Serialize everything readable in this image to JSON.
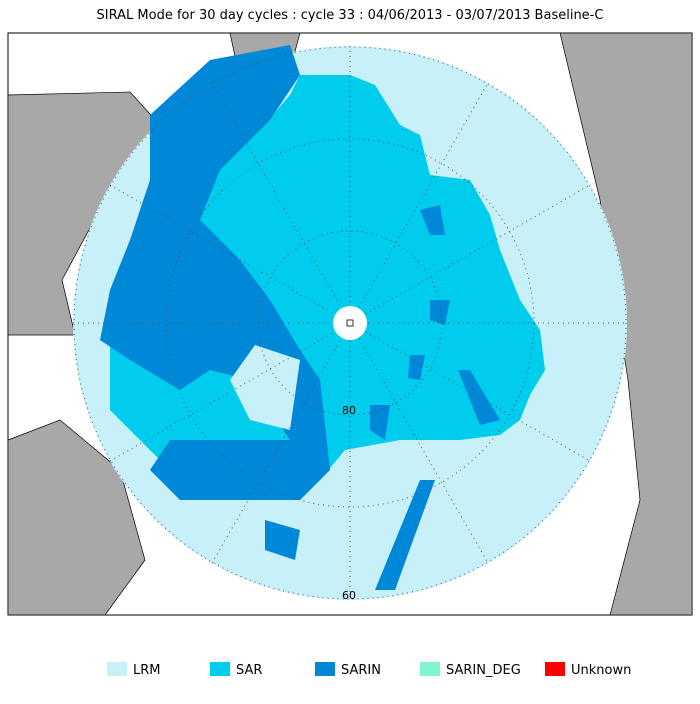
{
  "title": "SIRAL Mode for 30 day cycles : cycle 33 : 04/06/2013 - 03/07/2013 Baseline-C",
  "map_labels": [
    "80",
    "60"
  ],
  "legend": [
    {
      "label": "LRM",
      "color": "#c8f0f8"
    },
    {
      "label": "SAR",
      "color": "#00ccee"
    },
    {
      "label": "SARIN",
      "color": "#0088d8"
    },
    {
      "label": "SARIN_DEG",
      "color": "#80f4d0"
    },
    {
      "label": "Unknown",
      "color": "#ff0000"
    }
  ]
}
